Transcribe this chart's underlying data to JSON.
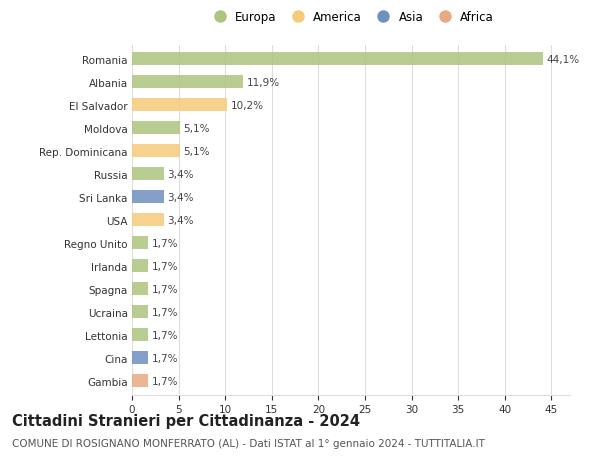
{
  "countries": [
    "Romania",
    "Albania",
    "El Salvador",
    "Moldova",
    "Rep. Dominicana",
    "Russia",
    "Sri Lanka",
    "USA",
    "Regno Unito",
    "Irlanda",
    "Spagna",
    "Ucraina",
    "Lettonia",
    "Cina",
    "Gambia"
  ],
  "values": [
    44.1,
    11.9,
    10.2,
    5.1,
    5.1,
    3.4,
    3.4,
    3.4,
    1.7,
    1.7,
    1.7,
    1.7,
    1.7,
    1.7,
    1.7
  ],
  "labels": [
    "44,1%",
    "11,9%",
    "10,2%",
    "5,1%",
    "5,1%",
    "3,4%",
    "3,4%",
    "3,4%",
    "1,7%",
    "1,7%",
    "1,7%",
    "1,7%",
    "1,7%",
    "1,7%",
    "1,7%"
  ],
  "continents": [
    "Europa",
    "Europa",
    "America",
    "Europa",
    "America",
    "Europa",
    "Asia",
    "America",
    "Europa",
    "Europa",
    "Europa",
    "Europa",
    "Europa",
    "Asia",
    "Africa"
  ],
  "continent_colors": {
    "Europa": "#adc47e",
    "America": "#f5cb7a",
    "Asia": "#7090bf",
    "Africa": "#e8aa80"
  },
  "legend_order": [
    "Europa",
    "America",
    "Asia",
    "Africa"
  ],
  "title": "Cittadini Stranieri per Cittadinanza - 2024",
  "subtitle": "COMUNE DI ROSIGNANO MONFERRATO (AL) - Dati ISTAT al 1° gennaio 2024 - TUTTITALIA.IT",
  "xlim": [
    0,
    47
  ],
  "xticks": [
    0,
    5,
    10,
    15,
    20,
    25,
    30,
    35,
    40,
    45
  ],
  "background_color": "#ffffff",
  "grid_color": "#dddddd",
  "bar_height": 0.55,
  "title_fontsize": 10.5,
  "subtitle_fontsize": 7.5,
  "label_fontsize": 7.5,
  "tick_fontsize": 7.5,
  "legend_fontsize": 8.5
}
